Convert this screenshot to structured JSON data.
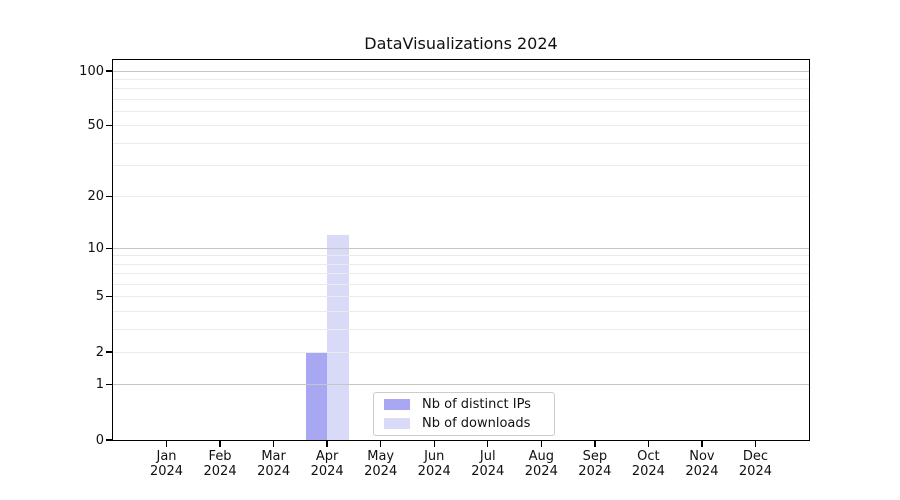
{
  "chart_data": {
    "type": "bar",
    "title": "DataVisualizations 2024",
    "categories": [
      "Jan",
      "Feb",
      "Mar",
      "Apr",
      "May",
      "Jun",
      "Jul",
      "Aug",
      "Sep",
      "Oct",
      "Nov",
      "Dec"
    ],
    "category_sublabel": "2024",
    "series": [
      {
        "name": "Nb of distinct IPs",
        "color": "#a8a8f2",
        "values": [
          0,
          0,
          0,
          2,
          0,
          0,
          0,
          0,
          0,
          0,
          0,
          0
        ]
      },
      {
        "name": "Nb of downloads",
        "color": "#d9d9f8",
        "values": [
          0,
          0,
          0,
          12,
          0,
          0,
          0,
          0,
          0,
          0,
          0,
          0
        ]
      }
    ],
    "xlabel": "",
    "ylabel": "",
    "y_scale": "log1p",
    "ylim": [
      0,
      115
    ],
    "y_ticks": [
      0,
      1,
      2,
      5,
      10,
      20,
      50,
      100
    ],
    "major_gridlines": [
      1,
      10,
      100
    ],
    "minor_gridlines": [
      2,
      3,
      4,
      5,
      6,
      7,
      8,
      9,
      20,
      30,
      40,
      50,
      60,
      70,
      80,
      90
    ],
    "grid": "horizontal",
    "legend_position": "lower-center"
  },
  "style": {
    "major_grid_color": "#c6c6c6",
    "minor_grid_color": "#ebebeb",
    "axis_color": "#000000",
    "text_color": "#111111",
    "legend_border_color": "#cccccc",
    "background_color": "#ffffff"
  }
}
